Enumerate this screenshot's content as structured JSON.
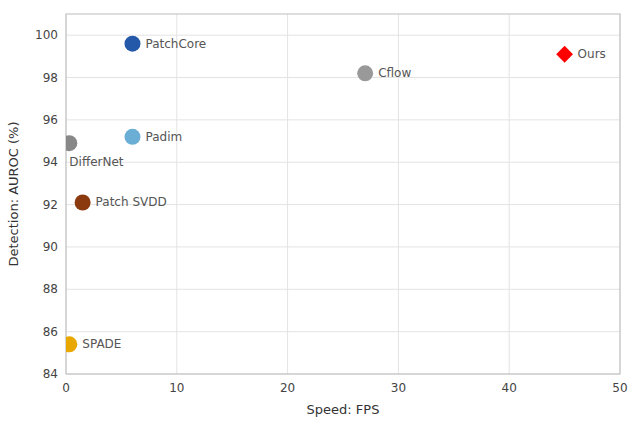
{
  "chart_data": {
    "type": "scatter",
    "xlabel": "Speed: FPS",
    "ylabel": "Detection: AUROC (%)",
    "series": [
      {
        "name": "PatchCore",
        "color": "#2458a8",
        "marker": "circle",
        "x": [
          6.0
        ],
        "values": [
          99.6
        ]
      },
      {
        "name": "Ours",
        "color": "#ff0000",
        "marker": "diamond",
        "x": [
          45.0
        ],
        "values": [
          99.1
        ]
      },
      {
        "name": "Cflow",
        "color": "#999999",
        "marker": "circle",
        "x": [
          27.0
        ],
        "values": [
          98.2
        ]
      },
      {
        "name": "Padim",
        "color": "#6aaed6",
        "marker": "circle",
        "x": [
          6.0
        ],
        "values": [
          95.2
        ]
      },
      {
        "name": "DifferNet",
        "color": "#888888",
        "marker": "circle",
        "x": [
          0.3
        ],
        "values": [
          94.9
        ]
      },
      {
        "name": "Patch SVDD",
        "color": "#8b3a0f",
        "marker": "circle",
        "x": [
          1.5
        ],
        "values": [
          92.1
        ]
      },
      {
        "name": "SPADE",
        "color": "#e8a800",
        "marker": "circle",
        "x": [
          0.3
        ],
        "values": [
          85.4
        ]
      }
    ],
    "xlim": [
      0,
      50
    ],
    "ylim": [
      84,
      101
    ],
    "xticks": [
      0,
      10,
      20,
      30,
      40,
      50
    ],
    "yticks": [
      84,
      86,
      88,
      90,
      92,
      94,
      96,
      98,
      100
    ],
    "grid": true
  }
}
